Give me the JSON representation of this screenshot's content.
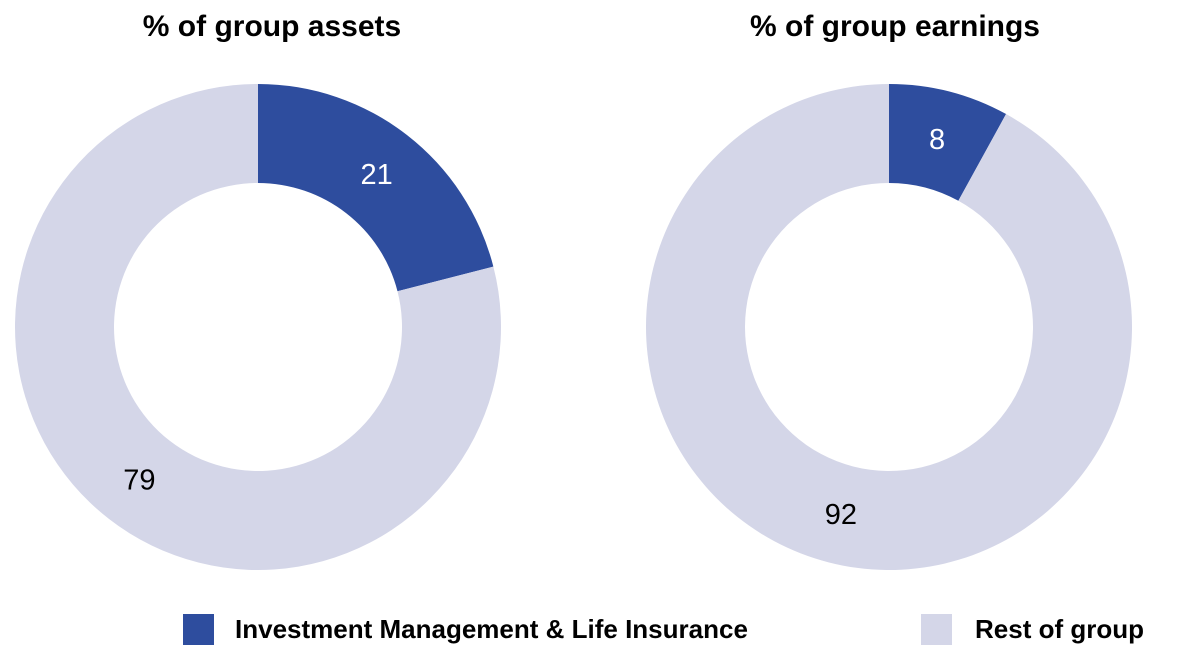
{
  "chart_data": [
    {
      "type": "donut",
      "title": "% of group assets",
      "categories": [
        "Investment Management & Life Insurance",
        "Rest of group"
      ],
      "values": [
        21,
        79
      ],
      "colors": [
        "#2e4d9e",
        "#d4d6e8"
      ]
    },
    {
      "type": "donut",
      "title": "% of group earnings",
      "categories": [
        "Investment Management & Life Insurance",
        "Rest of group"
      ],
      "values": [
        8,
        92
      ],
      "colors": [
        "#2e4d9e",
        "#d4d6e8"
      ]
    }
  ]
}
